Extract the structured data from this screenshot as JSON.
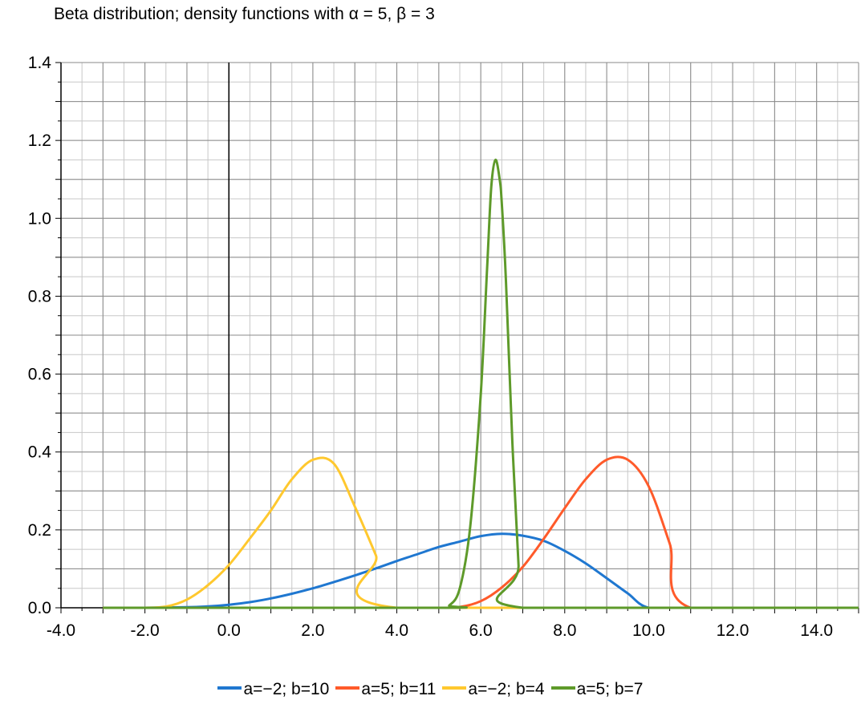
{
  "chart_data": {
    "type": "line",
    "title": "Beta distribution; density functions with α = 5, β = 3",
    "xlabel": "",
    "ylabel": "",
    "xlim": [
      -4,
      15
    ],
    "ylim": [
      0,
      1.4
    ],
    "x_ticks": [
      "-4.0",
      "-2.0",
      "0.0",
      "2.0",
      "4.0",
      "6.0",
      "8.0",
      "10.0",
      "12.0",
      "14.0"
    ],
    "y_ticks": [
      "0.0",
      "0.2",
      "0.4",
      "0.6",
      "0.8",
      "1.0",
      "1.2",
      "1.4"
    ],
    "x_tick_values": [
      -4,
      -2,
      0,
      2,
      4,
      6,
      8,
      10,
      12,
      14
    ],
    "y_tick_values": [
      0,
      0.2,
      0.4,
      0.6,
      0.8,
      1.0,
      1.2,
      1.4
    ],
    "grid": true,
    "legend_position": "bottom",
    "series": [
      {
        "name": "a=−2; b=10",
        "color": "#1f77d0",
        "points": [
          [
            -3.0,
            0
          ],
          [
            -2.0,
            0
          ],
          [
            -1.0,
            0.0015
          ],
          [
            -0.5,
            0.0035
          ],
          [
            0.0,
            0.0078
          ],
          [
            0.5,
            0.0145
          ],
          [
            1.0,
            0.024
          ],
          [
            1.5,
            0.036
          ],
          [
            2.0,
            0.05
          ],
          [
            2.5,
            0.066
          ],
          [
            3.0,
            0.083
          ],
          [
            3.5,
            0.101
          ],
          [
            4.0,
            0.12
          ],
          [
            4.5,
            0.138
          ],
          [
            5.0,
            0.156
          ],
          [
            5.5,
            0.17
          ],
          [
            6.0,
            0.184
          ],
          [
            6.5,
            0.19
          ],
          [
            7.0,
            0.185
          ],
          [
            7.5,
            0.172
          ],
          [
            8.0,
            0.146
          ],
          [
            8.5,
            0.114
          ],
          [
            9.0,
            0.076
          ],
          [
            9.5,
            0.037
          ],
          [
            10.0,
            0
          ],
          [
            11.0,
            0
          ],
          [
            15.0,
            0
          ]
        ]
      },
      {
        "name": "a=5; b=11",
        "color": "#ff5a2a",
        "points": [
          [
            -3.0,
            0
          ],
          [
            5.0,
            0
          ],
          [
            5.5,
            0.002
          ],
          [
            6.0,
            0.017
          ],
          [
            6.5,
            0.052
          ],
          [
            7.0,
            0.105
          ],
          [
            7.5,
            0.177
          ],
          [
            8.0,
            0.256
          ],
          [
            8.5,
            0.33
          ],
          [
            9.0,
            0.38
          ],
          [
            9.5,
            0.38
          ],
          [
            10.0,
            0.312
          ],
          [
            10.5,
            0.165
          ],
          [
            11.0,
            0
          ],
          [
            15.0,
            0
          ]
        ]
      },
      {
        "name": "a=−2; b=4",
        "color": "#ffc82e",
        "points": [
          [
            -3.0,
            0
          ],
          [
            -2.0,
            0
          ],
          [
            -1.5,
            0.003
          ],
          [
            -1.0,
            0.021
          ],
          [
            -0.5,
            0.058
          ],
          [
            0.0,
            0.11
          ],
          [
            0.5,
            0.178
          ],
          [
            1.0,
            0.25
          ],
          [
            1.5,
            0.33
          ],
          [
            2.0,
            0.38
          ],
          [
            2.5,
            0.37
          ],
          [
            3.0,
            0.26
          ],
          [
            3.5,
            0.135
          ],
          [
            4.0,
            0
          ],
          [
            15.0,
            0
          ]
        ]
      },
      {
        "name": "a=5; b=7",
        "color": "#5e9a2a",
        "points": [
          [
            -3.0,
            0
          ],
          [
            5.0,
            0
          ],
          [
            5.25,
            0.006
          ],
          [
            5.5,
            0.05
          ],
          [
            5.75,
            0.21
          ],
          [
            6.0,
            0.55
          ],
          [
            6.15,
            0.87
          ],
          [
            6.25,
            1.08
          ],
          [
            6.35,
            1.15
          ],
          [
            6.45,
            1.1
          ],
          [
            6.5,
            1.04
          ],
          [
            6.6,
            0.84
          ],
          [
            6.75,
            0.43
          ],
          [
            6.9,
            0.11
          ],
          [
            7.0,
            0
          ],
          [
            15.0,
            0
          ]
        ]
      }
    ]
  }
}
